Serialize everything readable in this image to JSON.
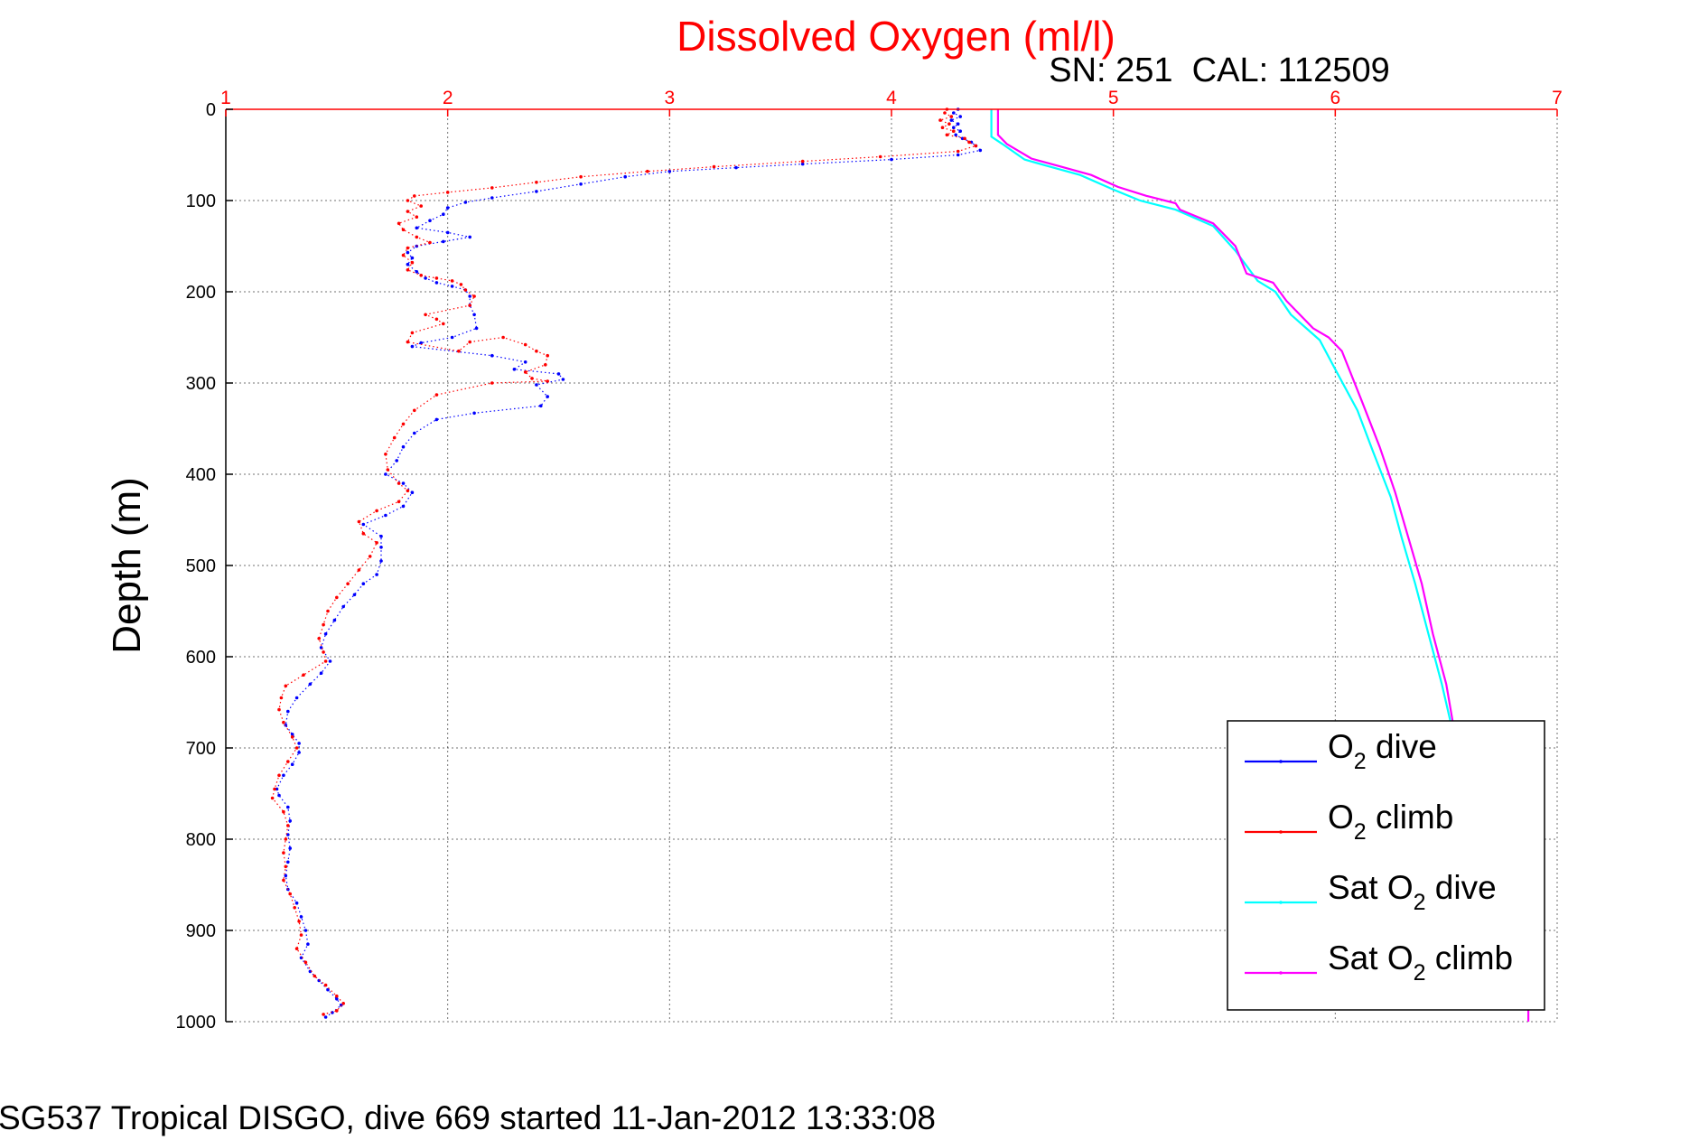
{
  "chart_data": {
    "type": "line",
    "title": "Dissolved Oxygen (ml/l)",
    "annotation": "SN: 251  CAL: 112509",
    "caption": "SG537 Tropical DISGO, dive 669 started 11-Jan-2012 13:33:08",
    "xlabel": "",
    "ylabel": "Depth (m)",
    "xlim": [
      1,
      7
    ],
    "ylim": [
      0,
      1000
    ],
    "y_reversed": true,
    "x_axis_position": "top",
    "x_ticks": [
      "1",
      "2",
      "3",
      "4",
      "5",
      "6",
      "7"
    ],
    "y_ticks": [
      "0",
      "100",
      "200",
      "300",
      "400",
      "500",
      "600",
      "700",
      "800",
      "900",
      "1000"
    ],
    "grid": true,
    "legend_position": "bottom-right",
    "series": [
      {
        "name": "O2 dive",
        "color": "#0000ff",
        "style": "points",
        "points": [
          [
            4.3,
            0
          ],
          [
            4.28,
            4
          ],
          [
            4.31,
            8
          ],
          [
            4.27,
            12
          ],
          [
            4.3,
            16
          ],
          [
            4.28,
            20
          ],
          [
            4.31,
            24
          ],
          [
            4.29,
            28
          ],
          [
            4.32,
            32
          ],
          [
            4.36,
            36
          ],
          [
            4.38,
            40
          ],
          [
            4.4,
            45
          ],
          [
            4.3,
            50
          ],
          [
            4.0,
            55
          ],
          [
            3.6,
            60
          ],
          [
            3.3,
            64
          ],
          [
            3.0,
            68
          ],
          [
            2.8,
            74
          ],
          [
            2.6,
            82
          ],
          [
            2.4,
            90
          ],
          [
            2.2,
            97
          ],
          [
            2.08,
            102
          ],
          [
            2.0,
            108
          ],
          [
            1.98,
            115
          ],
          [
            1.92,
            122
          ],
          [
            1.86,
            130
          ],
          [
            2.0,
            135
          ],
          [
            2.1,
            140
          ],
          [
            1.98,
            145
          ],
          [
            1.86,
            150
          ],
          [
            1.82,
            157
          ],
          [
            1.84,
            163
          ],
          [
            1.82,
            170
          ],
          [
            1.86,
            178
          ],
          [
            1.9,
            185
          ],
          [
            1.95,
            190
          ],
          [
            2.02,
            194
          ],
          [
            2.08,
            198
          ],
          [
            2.1,
            205
          ],
          [
            2.1,
            215
          ],
          [
            2.12,
            225
          ],
          [
            2.13,
            240
          ],
          [
            2.02,
            250
          ],
          [
            1.88,
            256
          ],
          [
            1.84,
            260
          ],
          [
            2.2,
            270
          ],
          [
            2.35,
            277
          ],
          [
            2.3,
            285
          ],
          [
            2.5,
            290
          ],
          [
            2.52,
            296
          ],
          [
            2.4,
            302
          ],
          [
            2.45,
            315
          ],
          [
            2.42,
            325
          ],
          [
            2.12,
            333
          ],
          [
            1.95,
            340
          ],
          [
            1.85,
            355
          ],
          [
            1.8,
            370
          ],
          [
            1.77,
            385
          ],
          [
            1.72,
            400
          ],
          [
            1.8,
            410
          ],
          [
            1.84,
            420
          ],
          [
            1.8,
            435
          ],
          [
            1.72,
            445
          ],
          [
            1.62,
            455
          ],
          [
            1.7,
            468
          ],
          [
            1.7,
            480
          ],
          [
            1.7,
            495
          ],
          [
            1.68,
            510
          ],
          [
            1.62,
            520
          ],
          [
            1.58,
            532
          ],
          [
            1.53,
            545
          ],
          [
            1.49,
            560
          ],
          [
            1.45,
            575
          ],
          [
            1.43,
            590
          ],
          [
            1.47,
            605
          ],
          [
            1.43,
            618
          ],
          [
            1.38,
            630
          ],
          [
            1.32,
            645
          ],
          [
            1.28,
            660
          ],
          [
            1.27,
            675
          ],
          [
            1.3,
            685
          ],
          [
            1.33,
            695
          ],
          [
            1.33,
            705
          ],
          [
            1.3,
            718
          ],
          [
            1.26,
            730
          ],
          [
            1.23,
            745
          ],
          [
            1.24,
            752
          ],
          [
            1.28,
            765
          ],
          [
            1.29,
            780
          ],
          [
            1.28,
            795
          ],
          [
            1.29,
            810
          ],
          [
            1.28,
            825
          ],
          [
            1.27,
            840
          ],
          [
            1.28,
            855
          ],
          [
            1.32,
            870
          ],
          [
            1.34,
            885
          ],
          [
            1.36,
            900
          ],
          [
            1.37,
            915
          ],
          [
            1.34,
            930
          ],
          [
            1.38,
            945
          ],
          [
            1.42,
            955
          ],
          [
            1.46,
            965
          ],
          [
            1.5,
            975
          ],
          [
            1.52,
            982
          ],
          [
            1.48,
            990
          ],
          [
            1.45,
            995
          ]
        ]
      },
      {
        "name": "O2 climb",
        "color": "#ff0000",
        "style": "points",
        "points": [
          [
            4.25,
            0
          ],
          [
            4.24,
            4
          ],
          [
            4.27,
            8
          ],
          [
            4.22,
            12
          ],
          [
            4.26,
            16
          ],
          [
            4.23,
            20
          ],
          [
            4.28,
            24
          ],
          [
            4.25,
            28
          ],
          [
            4.33,
            32
          ],
          [
            4.35,
            36
          ],
          [
            4.38,
            40
          ],
          [
            4.3,
            46
          ],
          [
            3.95,
            52
          ],
          [
            3.6,
            57
          ],
          [
            3.2,
            63
          ],
          [
            2.9,
            68
          ],
          [
            2.6,
            74
          ],
          [
            2.4,
            80
          ],
          [
            2.2,
            86
          ],
          [
            2.0,
            91
          ],
          [
            1.85,
            95
          ],
          [
            1.82,
            100
          ],
          [
            1.88,
            106
          ],
          [
            1.82,
            112
          ],
          [
            1.86,
            118
          ],
          [
            1.78,
            125
          ],
          [
            1.8,
            132
          ],
          [
            1.86,
            140
          ],
          [
            1.92,
            146
          ],
          [
            1.82,
            152
          ],
          [
            1.8,
            160
          ],
          [
            1.84,
            168
          ],
          [
            1.82,
            176
          ],
          [
            1.88,
            182
          ],
          [
            1.95,
            185
          ],
          [
            2.02,
            188
          ],
          [
            2.06,
            192
          ],
          [
            2.08,
            198
          ],
          [
            2.12,
            205
          ],
          [
            2.1,
            215
          ],
          [
            1.9,
            225
          ],
          [
            1.95,
            230
          ],
          [
            1.98,
            235
          ],
          [
            1.84,
            245
          ],
          [
            1.82,
            255
          ],
          [
            2.05,
            265
          ],
          [
            2.1,
            255
          ],
          [
            2.25,
            250
          ],
          [
            2.35,
            258
          ],
          [
            2.4,
            265
          ],
          [
            2.45,
            270
          ],
          [
            2.44,
            280
          ],
          [
            2.35,
            288
          ],
          [
            2.38,
            295
          ],
          [
            2.45,
            298
          ],
          [
            2.2,
            300
          ],
          [
            1.95,
            313
          ],
          [
            1.85,
            330
          ],
          [
            1.8,
            345
          ],
          [
            1.76,
            360
          ],
          [
            1.72,
            378
          ],
          [
            1.73,
            395
          ],
          [
            1.78,
            410
          ],
          [
            1.82,
            418
          ],
          [
            1.78,
            430
          ],
          [
            1.68,
            440
          ],
          [
            1.6,
            452
          ],
          [
            1.62,
            465
          ],
          [
            1.68,
            475
          ],
          [
            1.65,
            490
          ],
          [
            1.6,
            505
          ],
          [
            1.55,
            520
          ],
          [
            1.5,
            535
          ],
          [
            1.46,
            550
          ],
          [
            1.44,
            565
          ],
          [
            1.42,
            580
          ],
          [
            1.44,
            595
          ],
          [
            1.45,
            605
          ],
          [
            1.35,
            620
          ],
          [
            1.27,
            632
          ],
          [
            1.25,
            645
          ],
          [
            1.24,
            658
          ],
          [
            1.26,
            672
          ],
          [
            1.3,
            688
          ],
          [
            1.32,
            700
          ],
          [
            1.28,
            715
          ],
          [
            1.24,
            730
          ],
          [
            1.22,
            745
          ],
          [
            1.21,
            755
          ],
          [
            1.26,
            770
          ],
          [
            1.28,
            785
          ],
          [
            1.27,
            800
          ],
          [
            1.26,
            815
          ],
          [
            1.27,
            830
          ],
          [
            1.26,
            845
          ],
          [
            1.29,
            860
          ],
          [
            1.31,
            875
          ],
          [
            1.33,
            890
          ],
          [
            1.34,
            905
          ],
          [
            1.32,
            920
          ],
          [
            1.36,
            935
          ],
          [
            1.4,
            950
          ],
          [
            1.45,
            960
          ],
          [
            1.5,
            972
          ],
          [
            1.53,
            980
          ],
          [
            1.5,
            988
          ],
          [
            1.44,
            992
          ]
        ]
      },
      {
        "name": "Sat O2 dive",
        "color": "#00ffff",
        "style": "line",
        "points": [
          [
            4.45,
            0
          ],
          [
            4.45,
            30
          ],
          [
            4.5,
            38
          ],
          [
            4.6,
            55
          ],
          [
            4.7,
            62
          ],
          [
            4.85,
            72
          ],
          [
            5.0,
            88
          ],
          [
            5.12,
            100
          ],
          [
            5.28,
            110
          ],
          [
            5.45,
            128
          ],
          [
            5.55,
            155
          ],
          [
            5.65,
            188
          ],
          [
            5.73,
            200
          ],
          [
            5.8,
            225
          ],
          [
            5.93,
            253
          ],
          [
            6.0,
            285
          ],
          [
            6.1,
            330
          ],
          [
            6.17,
            375
          ],
          [
            6.25,
            425
          ],
          [
            6.3,
            470
          ],
          [
            6.36,
            520
          ],
          [
            6.42,
            575
          ],
          [
            6.48,
            630
          ],
          [
            6.52,
            672
          ]
        ]
      },
      {
        "name": "Sat O2 climb",
        "color": "#ff00ff",
        "style": "line",
        "points": [
          [
            4.48,
            0
          ],
          [
            4.48,
            28
          ],
          [
            4.52,
            38
          ],
          [
            4.63,
            54
          ],
          [
            4.75,
            62
          ],
          [
            4.9,
            72
          ],
          [
            5.02,
            85
          ],
          [
            5.15,
            95
          ],
          [
            5.28,
            103
          ],
          [
            5.3,
            110
          ],
          [
            5.45,
            125
          ],
          [
            5.55,
            150
          ],
          [
            5.6,
            180
          ],
          [
            5.72,
            190
          ],
          [
            5.78,
            210
          ],
          [
            5.9,
            240
          ],
          [
            5.97,
            250
          ],
          [
            6.03,
            265
          ],
          [
            6.12,
            320
          ],
          [
            6.2,
            370
          ],
          [
            6.27,
            420
          ],
          [
            6.33,
            470
          ],
          [
            6.39,
            520
          ],
          [
            6.44,
            575
          ],
          [
            6.5,
            630
          ],
          [
            6.53,
            672
          ],
          [
            6.87,
            985
          ],
          [
            6.87,
            1000
          ]
        ]
      }
    ],
    "legend": [
      {
        "main": "O",
        "sub": "2",
        "rest": " dive",
        "color": "#0000ff"
      },
      {
        "main": "O",
        "sub": "2",
        "rest": " climb",
        "color": "#ff0000"
      },
      {
        "main": "Sat O",
        "sub": "2",
        "rest": " dive",
        "color": "#00ffff"
      },
      {
        "main": "Sat O",
        "sub": "2",
        "rest": " climb",
        "color": "#ff00ff"
      }
    ]
  }
}
